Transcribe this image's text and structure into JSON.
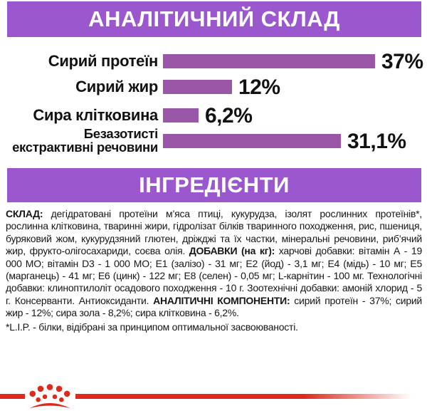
{
  "header_analytical": {
    "title": "АНАЛІТИЧНИЙ СКЛАД"
  },
  "header_ingredients": {
    "title": "ІНГРЕДІЄНТИ"
  },
  "colors": {
    "header_bg": "#9b58ce",
    "bar": "#9a57a7",
    "text": "#121212",
    "brand_red": "#dd2a1c"
  },
  "chart_data": {
    "type": "bar",
    "orientation": "horizontal",
    "title": "АНАЛІТИЧНИЙ СКЛАД",
    "categories": [
      "Сирий протеїн",
      "Сирий жир",
      "Сира клітковина",
      "Безазотисті\nекстрактивні речовини"
    ],
    "values": [
      37,
      12,
      6.2,
      31.1
    ],
    "value_labels": [
      "37%",
      "12%",
      "6,2%",
      "31,1%"
    ],
    "xlim": [
      0,
      37
    ],
    "grid": false,
    "legend": false,
    "bar_color": "#9a57a7"
  },
  "ingredients": {
    "paragraphs": [
      {
        "name": "composition",
        "runs": [
          {
            "b": true,
            "t": "СКЛАД:"
          },
          {
            "b": false,
            "t": " дегідратовані протеїни м’яса птиці, кукурудза, ізолят рослинних протеїнів*, рослинна клітковина, тваринні жири, гідролізат білків тваринного походження, рис, пшениця, буряковий жом, кукурудзяний глютен, дріжджі та їх частки, мінеральні речовини, риб’ячий жир, фрукто-олігосахариди, соєва олія. "
          },
          {
            "b": true,
            "t": "ДОБАВКИ (на кг):"
          },
          {
            "b": false,
            "t": " харчові добавки: вітамін А - 19 000 МО; вітамін D3 - 1 000 МО; Е1 (залізо) - 31 мг; Е2 (йод) - 3,1 мг; Е4 (мідь) - 10 мг; Е5 (марганець) - 41 мг; Е6 (цинк) - 122 мг; Е8 (селен) - 0,05 мг; L-карнітин - 100 мг. Технологічні добавки: клиноптилоліт осадового походження - 10 г. Зоотехнічні добавки: амоній хлорид - 5 г. Консерванти. Антиоксиданти. "
          },
          {
            "b": true,
            "t": "АНАЛІТИЧНІ КОМПОНЕНТИ:"
          },
          {
            "b": false,
            "t": " сирий протеїн - 37%; сирий жир - 12%; сира зола - 8,2%; сира клітковина - 6,2%."
          }
        ]
      },
      {
        "name": "footnote",
        "runs": [
          {
            "b": false,
            "t": "*L.I.P. - білки, відібрані за принципом оптимальної засвоюваності."
          }
        ]
      }
    ]
  },
  "footer": {
    "logo": "royal-canin-crown"
  }
}
